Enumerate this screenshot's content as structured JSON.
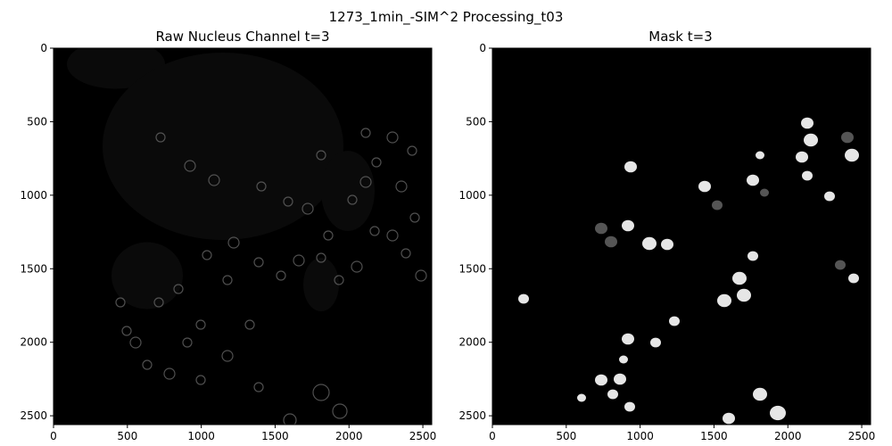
{
  "figure": {
    "title": "1273_1min_-SIM^2 Processing_t03"
  },
  "panels": [
    {
      "id": "raw",
      "title": "Raw Nucleus Channel t=3",
      "x_ticks": [
        "0",
        "500",
        "1000",
        "1500",
        "2000",
        "2500"
      ],
      "y_ticks": [
        "0",
        "500",
        "1000",
        "1500",
        "2000",
        "2500"
      ],
      "image_max": 2560
    },
    {
      "id": "mask",
      "title": "Mask t=3",
      "x_ticks": [
        "0",
        "500",
        "1000",
        "1500",
        "2000",
        "2500"
      ],
      "y_ticks": [
        "0",
        "500",
        "1000",
        "1500",
        "2000",
        "2500"
      ],
      "image_max": 2560
    }
  ],
  "colors": {
    "background": "#ffffff",
    "image_black": "#000000",
    "raw_texture": "#0a0a0a",
    "raw_ring": "#6a6a6a",
    "mask_bright": "#e6e6e6",
    "mask_dim": "#555555"
  }
}
